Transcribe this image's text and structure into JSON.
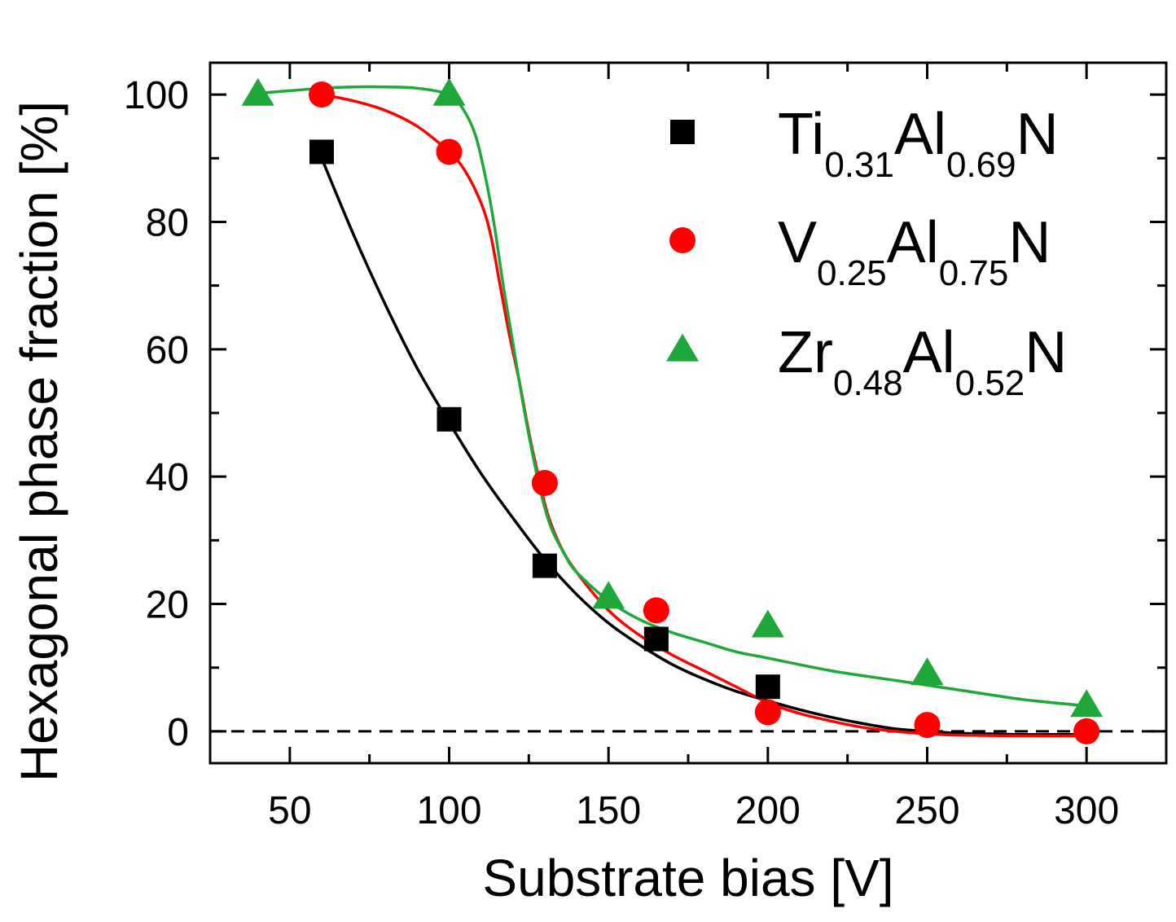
{
  "chart_data": {
    "type": "scatter",
    "xlabel": "Substrate bias [V]",
    "ylabel": "Hexagonal phase fraction [%]",
    "xlim": [
      25,
      325
    ],
    "ylim": [
      -5,
      105
    ],
    "xticks": [
      50,
      100,
      150,
      200,
      250,
      300
    ],
    "yticks": [
      0,
      20,
      40,
      60,
      80,
      100
    ],
    "reference_line": {
      "y": 0,
      "style": "dashed"
    },
    "legend_position": "top-right",
    "series": [
      {
        "name": "Ti0.31Al0.69N",
        "legend": [
          {
            "text": "Ti",
            "sub": false
          },
          {
            "text": "0.31",
            "sub": true
          },
          {
            "text": "Al",
            "sub": false
          },
          {
            "text": "0.69",
            "sub": true
          },
          {
            "text": "N",
            "sub": false
          }
        ],
        "color": "#000000",
        "marker": "square",
        "points": [
          [
            60,
            91
          ],
          [
            100,
            49
          ],
          [
            130,
            26
          ],
          [
            165,
            14.5
          ],
          [
            200,
            7
          ]
        ],
        "fit": [
          [
            60,
            90
          ],
          [
            70,
            78
          ],
          [
            80,
            67
          ],
          [
            90,
            57
          ],
          [
            100,
            48.5
          ],
          [
            110,
            40.5
          ],
          [
            120,
            33.5
          ],
          [
            130,
            27
          ],
          [
            140,
            21.5
          ],
          [
            150,
            17
          ],
          [
            160,
            13.5
          ],
          [
            170,
            10.5
          ],
          [
            180,
            8.2
          ],
          [
            190,
            6.3
          ],
          [
            200,
            4.8
          ],
          [
            210,
            3.4
          ],
          [
            220,
            2.2
          ],
          [
            230,
            1.2
          ],
          [
            240,
            0.4
          ],
          [
            250,
            0
          ],
          [
            260,
            -0.3
          ],
          [
            270,
            -0.4
          ],
          [
            280,
            -0.5
          ],
          [
            290,
            -0.5
          ],
          [
            300,
            -0.5
          ]
        ]
      },
      {
        "name": "V0.25Al0.75N",
        "legend": [
          {
            "text": "V",
            "sub": false
          },
          {
            "text": "0.25",
            "sub": true
          },
          {
            "text": "Al",
            "sub": false
          },
          {
            "text": "0.75",
            "sub": true
          },
          {
            "text": "N",
            "sub": false
          }
        ],
        "color": "#ff0000",
        "marker": "circle",
        "points": [
          [
            60,
            100
          ],
          [
            100,
            91
          ],
          [
            130,
            39
          ],
          [
            165,
            19
          ],
          [
            200,
            3
          ],
          [
            250,
            1
          ],
          [
            300,
            0
          ]
        ],
        "fit": [
          [
            60,
            100
          ],
          [
            70,
            99
          ],
          [
            80,
            97.5
          ],
          [
            90,
            95
          ],
          [
            100,
            91
          ],
          [
            105,
            88
          ],
          [
            110,
            83
          ],
          [
            113,
            78
          ],
          [
            116,
            70
          ],
          [
            119,
            62
          ],
          [
            122,
            55
          ],
          [
            125,
            47
          ],
          [
            128,
            40
          ],
          [
            131,
            34
          ],
          [
            135,
            29
          ],
          [
            140,
            25
          ],
          [
            150,
            19
          ],
          [
            160,
            15
          ],
          [
            170,
            12
          ],
          [
            180,
            9.5
          ],
          [
            190,
            7
          ],
          [
            200,
            4.5
          ],
          [
            210,
            2.8
          ],
          [
            220,
            1.6
          ],
          [
            230,
            0.6
          ],
          [
            240,
            0
          ],
          [
            250,
            -0.4
          ],
          [
            260,
            -0.6
          ],
          [
            280,
            -0.7
          ],
          [
            300,
            -0.7
          ]
        ]
      },
      {
        "name": "Zr0.48Al0.52N",
        "legend": [
          {
            "text": "Zr",
            "sub": false
          },
          {
            "text": "0.48",
            "sub": true
          },
          {
            "text": "Al",
            "sub": false
          },
          {
            "text": "0.52",
            "sub": true
          },
          {
            "text": "N",
            "sub": false
          }
        ],
        "color": "#1fa83a",
        "marker": "triangle",
        "points": [
          [
            40,
            100
          ],
          [
            100,
            100
          ],
          [
            150,
            21
          ],
          [
            200,
            16.5
          ],
          [
            250,
            9
          ],
          [
            300,
            4
          ]
        ],
        "fit": [
          [
            40,
            100.2
          ],
          [
            50,
            100.6
          ],
          [
            60,
            101
          ],
          [
            70,
            101.2
          ],
          [
            80,
            101.2
          ],
          [
            90,
            101
          ],
          [
            100,
            100
          ],
          [
            104,
            98
          ],
          [
            108,
            94
          ],
          [
            111,
            88
          ],
          [
            114,
            80
          ],
          [
            117,
            70
          ],
          [
            120,
            61
          ],
          [
            123,
            52
          ],
          [
            126,
            44
          ],
          [
            129,
            37
          ],
          [
            132,
            32
          ],
          [
            136,
            28
          ],
          [
            140,
            25
          ],
          [
            150,
            20.5
          ],
          [
            160,
            17.5
          ],
          [
            170,
            15.5
          ],
          [
            180,
            14
          ],
          [
            190,
            12.5
          ],
          [
            200,
            11.5
          ],
          [
            220,
            9.5
          ],
          [
            240,
            8
          ],
          [
            260,
            6.5
          ],
          [
            280,
            5
          ],
          [
            300,
            4
          ]
        ]
      }
    ]
  }
}
